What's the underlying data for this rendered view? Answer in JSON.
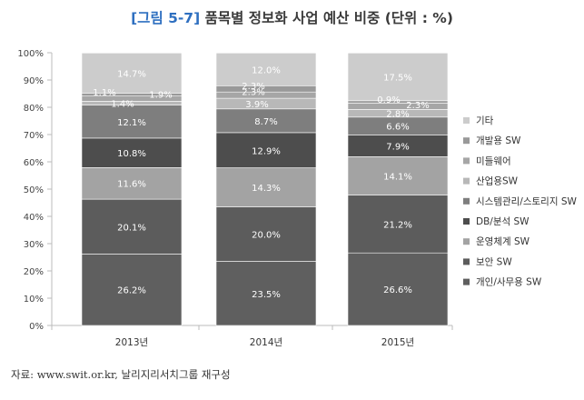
{
  "title": {
    "prefix": "[그림 5-7]",
    "text": "품목별 정보화 사업 예산 비중 (단위 : %)"
  },
  "source": "자료: www.swit.or.kr, 날리지리서치그룹 재구성",
  "chart_data": {
    "type": "bar",
    "stacked": true,
    "categories": [
      "2013년",
      "2014년",
      "2015년"
    ],
    "ylim": [
      0,
      100
    ],
    "yticks": [
      "0%",
      "10%",
      "20%",
      "30%",
      "40%",
      "50%",
      "60%",
      "70%",
      "80%",
      "90%",
      "100%"
    ],
    "grid": false,
    "legend_position": "right",
    "series": [
      {
        "name": "개인/사무용 SW",
        "color": "#5f5f5f",
        "text_color": "#ffffff",
        "values": [
          26.2,
          23.5,
          26.6
        ],
        "labels": [
          "26.2%",
          "23.5%",
          "26.6%"
        ]
      },
      {
        "name": "보안 SW",
        "color": "#5c5c5c",
        "text_color": "#ffffff",
        "values": [
          20.1,
          20.0,
          21.2
        ],
        "labels": [
          "20.1%",
          "20.0%",
          "21.2%"
        ]
      },
      {
        "name": "운영체계 SW",
        "color": "#a3a3a3",
        "text_color": "#ffffff",
        "values": [
          11.6,
          14.3,
          14.1
        ],
        "labels": [
          "11.6%",
          "14.3%",
          "14.1%"
        ]
      },
      {
        "name": "DB/분석 SW",
        "color": "#4d4d4d",
        "text_color": "#ffffff",
        "values": [
          10.8,
          12.9,
          7.9
        ],
        "labels": [
          "10.8%",
          "12.9%",
          "7.9%"
        ]
      },
      {
        "name": "시스템관리/스토리지 SW",
        "color": "#7e7e7e",
        "text_color": "#ffffff",
        "values": [
          12.1,
          8.7,
          6.6
        ],
        "labels": [
          "12.1%",
          "8.7%",
          "6.6%"
        ]
      },
      {
        "name": "산업용SW",
        "color": "#b8b8b8",
        "text_color": "#ffffff",
        "values": [
          1.4,
          3.9,
          2.8
        ],
        "labels": [
          "1.4%",
          "3.9%",
          "2.8%"
        ]
      },
      {
        "name": "미들웨어",
        "color": "#a6a6a6",
        "text_color": "#ffffff",
        "values": [
          1.9,
          2.3,
          2.3
        ],
        "labels": [
          "1.9%",
          "2.3%",
          "2.3%"
        ]
      },
      {
        "name": "개발용 SW",
        "color": "#999999",
        "text_color": "#ffffff",
        "values": [
          1.1,
          2.3,
          0.9
        ],
        "labels": [
          "1.1%",
          "2.3%",
          "0.9%"
        ]
      },
      {
        "name": "기타",
        "color": "#cccccc",
        "text_color": "#ffffff",
        "values": [
          14.7,
          12.0,
          17.5
        ],
        "labels": [
          "14.7%",
          "12.0%",
          "17.5%"
        ]
      }
    ]
  }
}
